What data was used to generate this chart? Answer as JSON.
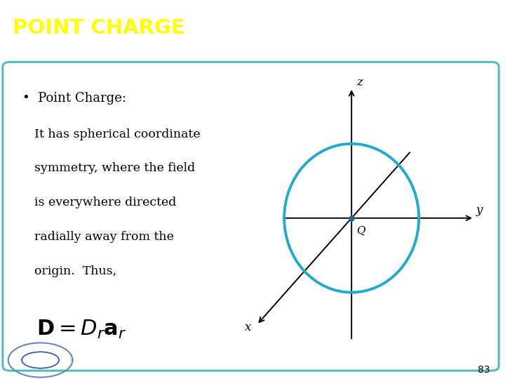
{
  "title": "POINT CHARGE",
  "title_bg_color": "#6b6bcc",
  "title_text_color": "#ffff00",
  "slide_bg_color": "#ffffff",
  "border_color": "#55bbbb",
  "bullet_text": "Point Charge:",
  "body_lines": [
    "It has spherical coordinate",
    "symmetry, where the field",
    "is everywhere directed",
    "radially away from the",
    "origin.  Thus,"
  ],
  "page_number": "83",
  "axis_color": "#000000",
  "circle_color": "#22aacc",
  "circle_linewidth": 2.8,
  "origin_dot_color": "#1a6699",
  "axis_labels": {
    "x": "x",
    "y": "y",
    "z": "z"
  },
  "Q_label": "Q",
  "white_line_color": "#ffffff"
}
